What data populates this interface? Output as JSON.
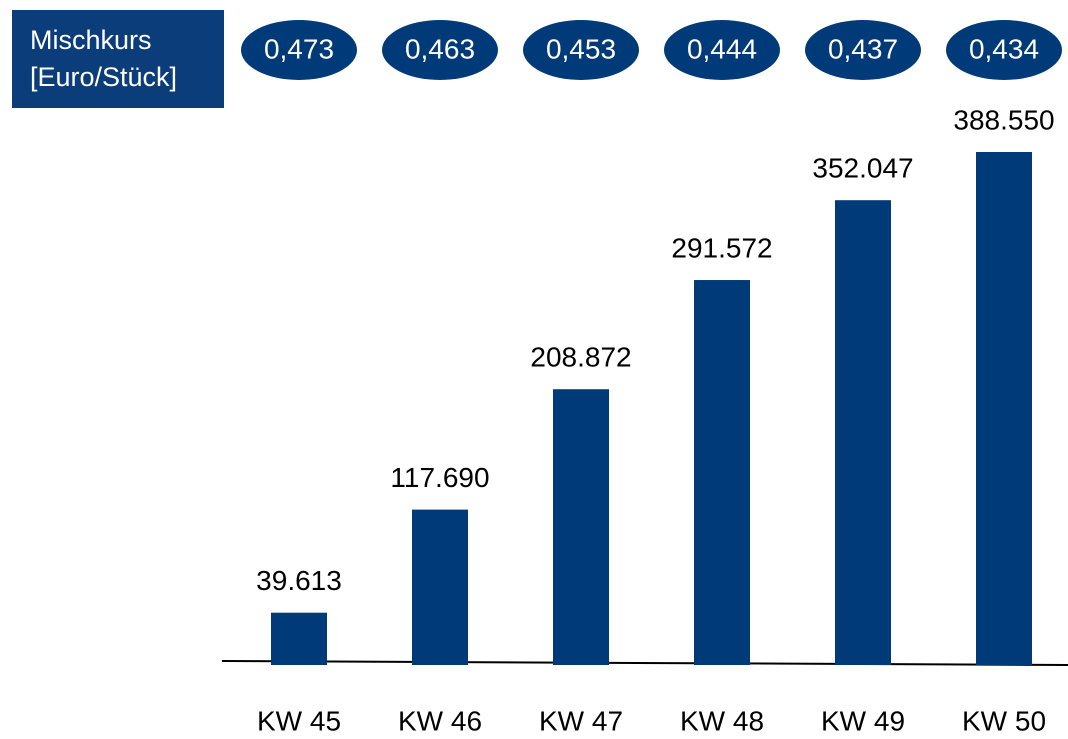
{
  "chart_data": {
    "type": "bar",
    "rate_title": [
      "Mischkurs",
      "[Euro/Stück]"
    ],
    "rates": [
      0.473,
      0.463,
      0.453,
      0.444,
      0.437,
      0.434
    ],
    "rate_labels": [
      "0,473",
      "0,463",
      "0,453",
      "0,444",
      "0,437",
      "0,434"
    ],
    "categories": [
      "KW 45",
      "KW 46",
      "KW 47",
      "KW 48",
      "KW 49",
      "KW 50"
    ],
    "values": [
      39613,
      117690,
      208872,
      291572,
      352047,
      388550
    ],
    "value_labels": [
      "39.613",
      "117.690",
      "208.872",
      "291.572",
      "352.047",
      "388.550"
    ],
    "color": "#003a78"
  }
}
